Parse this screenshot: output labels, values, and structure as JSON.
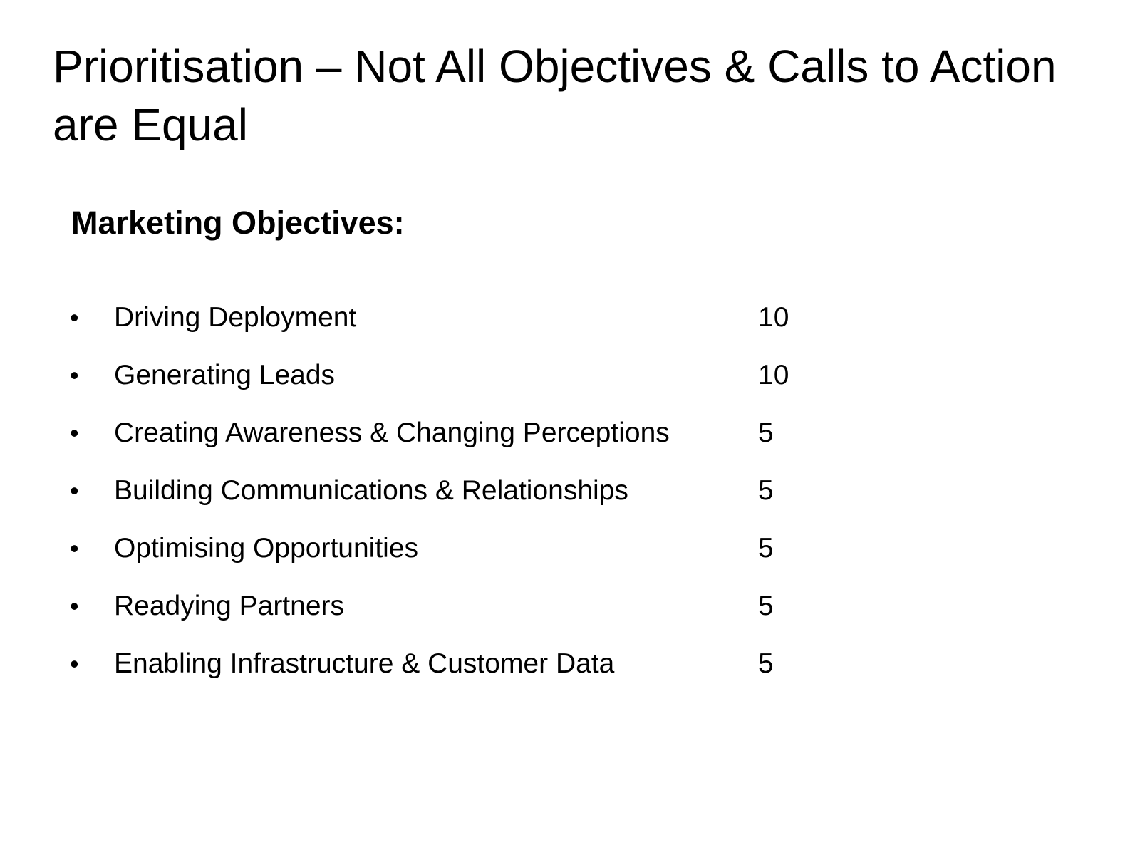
{
  "slide": {
    "title": "Prioritisation – Not All Objectives & Calls to Action are Equal",
    "subtitle": "Marketing Objectives:",
    "bullet_glyph": "•",
    "objectives": [
      {
        "label": "Driving Deployment",
        "score": "10"
      },
      {
        "label": "Generating Leads",
        "score": "10"
      },
      {
        "label": "Creating Awareness & Changing Perceptions",
        "score": "5"
      },
      {
        "label": "Building Communications & Relationships",
        "score": "5"
      },
      {
        "label": "Optimising Opportunities",
        "score": "5"
      },
      {
        "label": "Readying Partners",
        "score": "5"
      },
      {
        "label": "Enabling Infrastructure & Customer Data",
        "score": "5"
      }
    ]
  }
}
